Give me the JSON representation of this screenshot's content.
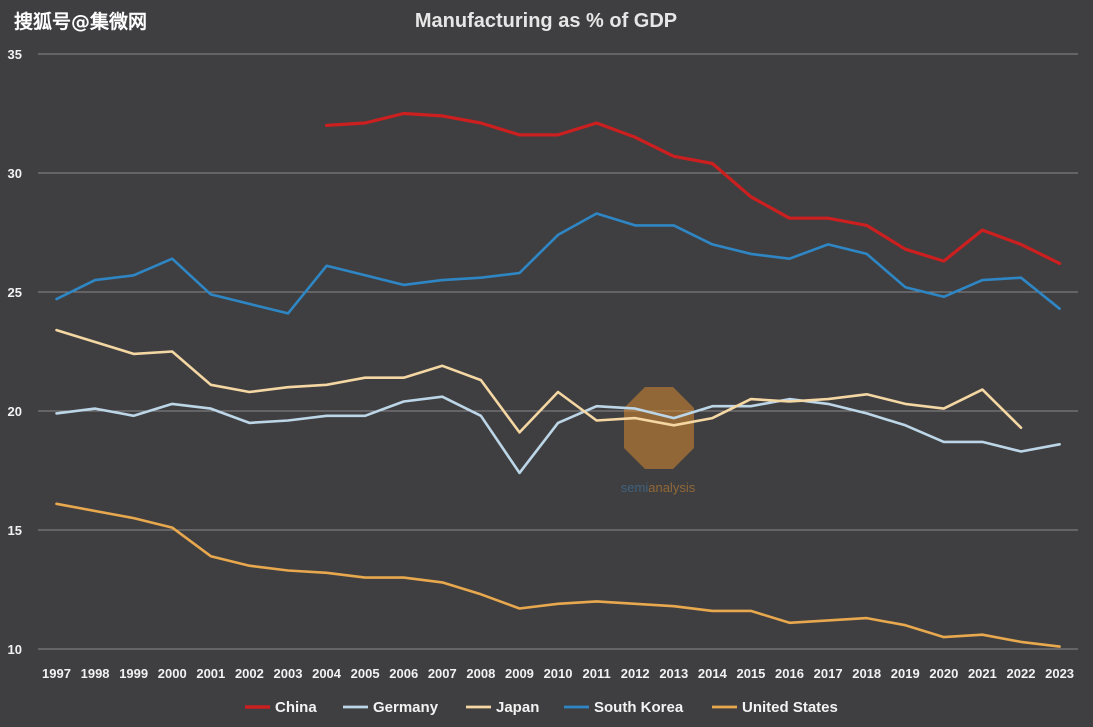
{
  "watermark": {
    "top_left": "搜狐号@集微网",
    "brand_a": "semi",
    "brand_b": "analysis"
  },
  "colors": {
    "background": "#3f3f41",
    "grid": "#8a8a8a",
    "China": "#cc1f1f",
    "Germany": "#bcd6e8",
    "Japan": "#f4d7a3",
    "South Korea": "#2f86c4",
    "United States": "#e8a84e"
  },
  "chart_data": {
    "type": "line",
    "title": "Manufacturing as % of GDP",
    "xlabel": "",
    "ylabel": "",
    "ylim": [
      10,
      35
    ],
    "yticks": [
      10,
      15,
      20,
      25,
      30,
      35
    ],
    "grid": true,
    "legend_position": "bottom",
    "x": [
      "1997",
      "1998",
      "1999",
      "2000",
      "2001",
      "2002",
      "2003",
      "2004",
      "2005",
      "2006",
      "2007",
      "2008",
      "2009",
      "2010",
      "2011",
      "2012",
      "2013",
      "2014",
      "2015",
      "2016",
      "2017",
      "2018",
      "2019",
      "2020",
      "2021",
      "2022",
      "2023"
    ],
    "series": [
      {
        "name": "China",
        "values": [
          null,
          null,
          null,
          null,
          null,
          null,
          null,
          32.0,
          32.1,
          32.5,
          32.4,
          32.1,
          31.6,
          31.6,
          32.1,
          31.5,
          30.7,
          30.4,
          29.0,
          28.1,
          28.1,
          27.8,
          26.8,
          26.3,
          27.6,
          27.0,
          26.2
        ]
      },
      {
        "name": "Germany",
        "values": [
          19.9,
          20.1,
          19.8,
          20.3,
          20.1,
          19.5,
          19.6,
          19.8,
          19.8,
          20.4,
          20.6,
          19.8,
          17.4,
          19.5,
          20.2,
          20.1,
          19.7,
          20.2,
          20.2,
          20.5,
          20.3,
          19.9,
          19.4,
          18.7,
          18.7,
          18.3,
          18.6
        ]
      },
      {
        "name": "Japan",
        "values": [
          23.4,
          22.9,
          22.4,
          22.5,
          21.1,
          20.8,
          21.0,
          21.1,
          21.4,
          21.4,
          21.9,
          21.3,
          19.1,
          20.8,
          19.6,
          19.7,
          19.4,
          19.7,
          20.5,
          20.4,
          20.5,
          20.7,
          20.3,
          20.1,
          20.9,
          19.3,
          null
        ]
      },
      {
        "name": "South Korea",
        "values": [
          24.7,
          25.5,
          25.7,
          26.4,
          24.9,
          24.5,
          24.1,
          26.1,
          25.7,
          25.3,
          25.5,
          25.6,
          25.8,
          27.4,
          28.3,
          27.8,
          27.8,
          27.0,
          26.6,
          26.4,
          27.0,
          26.6,
          25.2,
          24.8,
          25.5,
          25.6,
          24.3
        ]
      },
      {
        "name": "United States",
        "values": [
          16.1,
          15.8,
          15.5,
          15.1,
          13.9,
          13.5,
          13.3,
          13.2,
          13.0,
          13.0,
          12.8,
          12.3,
          11.7,
          11.9,
          12.0,
          11.9,
          11.8,
          11.6,
          11.6,
          11.1,
          11.2,
          11.3,
          11.0,
          10.5,
          10.6,
          10.3,
          10.1
        ]
      }
    ]
  }
}
